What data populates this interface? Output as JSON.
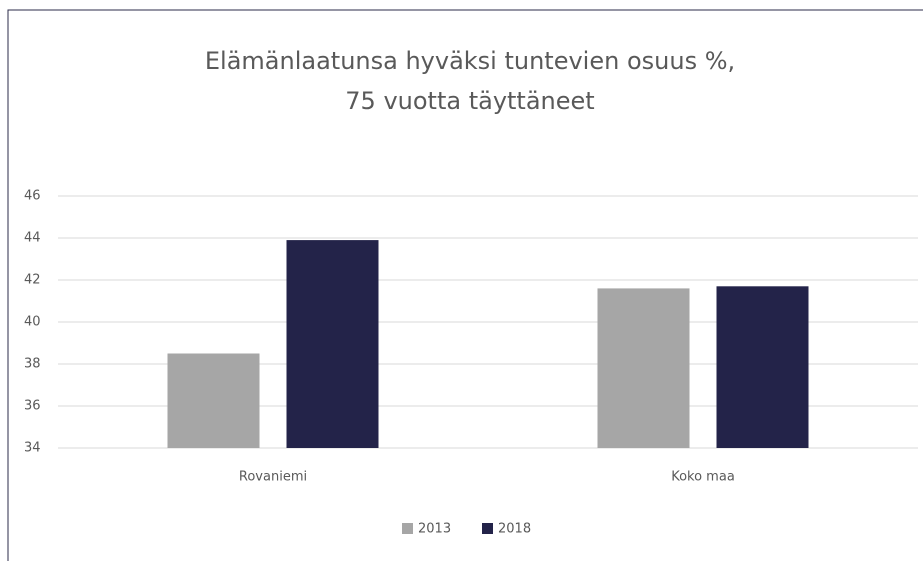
{
  "chart_data": {
    "type": "bar",
    "title": [
      "Elämänlaatunsa hyväksi tuntevien osuus %,",
      "75 vuotta täyttäneet"
    ],
    "categories": [
      "Rovaniemi",
      "Koko maa"
    ],
    "series": [
      {
        "name": "2013",
        "color": "#a6a6a6",
        "values": [
          38.5,
          41.6
        ]
      },
      {
        "name": "2018",
        "color": "#232349",
        "values": [
          43.9,
          41.7
        ]
      }
    ],
    "ylim": [
      34,
      46
    ],
    "yticks": [
      34,
      36,
      38,
      40,
      42,
      44,
      46
    ],
    "grid": true,
    "legend": "bottom"
  }
}
